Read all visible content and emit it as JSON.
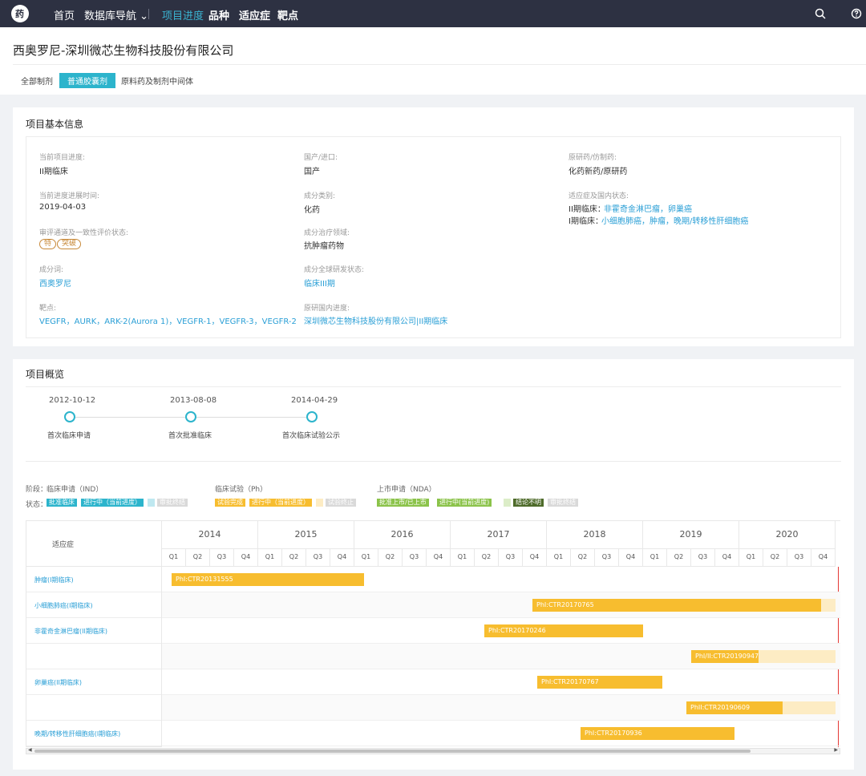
{
  "nav": {
    "logo_text": "药",
    "items": [
      {
        "label": "首页"
      },
      {
        "label": "数据库导航 ⌄"
      },
      {
        "label": "项目进度"
      },
      {
        "label": "品种"
      },
      {
        "label": "适应症"
      },
      {
        "label": "靶点"
      }
    ],
    "icons": [
      "search-icon",
      "help-icon"
    ]
  },
  "header": {
    "company": "西奥罗尼-深圳微芯生物科技股份有限公司",
    "tabs": [
      {
        "label": "全部制剂"
      },
      {
        "label": "普通胶囊剂"
      },
      {
        "label": "原料药及制剂中间体"
      }
    ]
  },
  "basic_info": {
    "title": "项目基本信息",
    "col1": [
      {
        "label": "当前项目进度:",
        "value": "II期临床"
      },
      {
        "label": "当前进度进展时间:",
        "value": "2019-04-03"
      },
      {
        "label": "审评通道及一致性评价状态:",
        "pills": [
          "特",
          "突破"
        ]
      },
      {
        "label": "成分词:",
        "value": "西奥罗尼"
      },
      {
        "label": "靶点:",
        "value": "VEGFR，AURK，ARK-2(Aurora 1)，VEGFR-1，VEGFR-3，VEGFR-2"
      }
    ],
    "col2": [
      {
        "label": "国产/进口:",
        "value": "国产"
      },
      {
        "label": "成分类别:",
        "value": "化药"
      },
      {
        "label": "成分治疗领域:",
        "value": "抗肿瘤药物"
      },
      {
        "label": "成分全球研发状态:",
        "value": "临床III期"
      },
      {
        "label": "原研国内进度:",
        "value": "深圳微芯生物科技股份有限公司|II期临床"
      }
    ],
    "col3": [
      {
        "label": "原研药/仿制药:",
        "value": "化药新药/原研药"
      },
      {
        "label": "适应症及国内状态:",
        "lines": [
          {
            "prefix": "II期临床：",
            "text": "非霍奇金淋巴瘤，卵巢癌"
          },
          {
            "prefix": "I期临床：",
            "text": "小细胞肺癌，肿瘤，晚期/转移性肝细胞癌"
          }
        ]
      }
    ]
  },
  "overview": {
    "title": "项目概览",
    "timeline": [
      {
        "date": "2012-10-12",
        "label": "首次临床申请"
      },
      {
        "date": "2013-08-08",
        "label": "首次批准临床"
      },
      {
        "date": "2014-04-29",
        "label": "首次临床试验公示"
      }
    ],
    "legend": {
      "stage_label": "阶段：",
      "status_label": "状态：",
      "ind": {
        "title": "临床申请（IND）",
        "chips": [
          {
            "text": "批准临床",
            "color": "#2cb4cc"
          },
          {
            "text": "进行中（当前进度）",
            "color": "#2cb4cc"
          },
          {
            "text": "",
            "color": "#bfe8f0"
          },
          {
            "text": "审批终结",
            "color": "#d9d9d9"
          }
        ]
      },
      "ph": {
        "title": "临床试验（Ph）",
        "chips": [
          {
            "text": "试验完成",
            "color": "#f7bd2f"
          },
          {
            "text": "进行中（当前进度）",
            "color": "#f7bd2f"
          },
          {
            "text": "",
            "color": "#fdecc4"
          },
          {
            "text": "试验终止",
            "color": "#d9d9d9"
          }
        ]
      },
      "nda": {
        "title": "上市申请（NDA）",
        "chips": [
          {
            "text": "批准上市/已上市",
            "color": "#8bc34a"
          },
          {
            "text": "进行中(当前进度)",
            "color": "#8bc34a"
          },
          {
            "text": "",
            "color": "#dcedc8"
          },
          {
            "text": "结论不明",
            "color": "#4e6b2a"
          },
          {
            "text": "审批终结",
            "color": "#d9d9d9"
          }
        ]
      }
    },
    "gantt": {
      "header_label": "适应症",
      "years": [
        "2014",
        "2015",
        "2016",
        "2017",
        "2018",
        "2019",
        "2020"
      ],
      "quarters": [
        "Q1",
        "Q2",
        "Q3",
        "Q4"
      ],
      "rows": [
        {
          "indication": "肿瘤(I期临床)",
          "bar": {
            "text": "PhI:CTR20131555",
            "start": 2014.1,
            "end": 2016.1,
            "ghost_end": null
          }
        },
        {
          "indication": "小细胞肺癌(I期临床)",
          "bar": {
            "text": "PhI:CTR20170765",
            "start": 2017.85,
            "end": 2020.85,
            "ghost_end": 2021.0
          }
        },
        {
          "indication": "非霍奇金淋巴瘤(II期临床)",
          "bar": {
            "text": "PhI:CTR20170246",
            "start": 2017.35,
            "end": 2019.0,
            "ghost_end": null
          }
        },
        {
          "indication": "",
          "bar": {
            "text": "PhI/II:CTR20190947",
            "start": 2019.5,
            "end": 2020.2,
            "ghost_end": 2021.0
          }
        },
        {
          "indication": "卵巢癌(II期临床)",
          "bar": {
            "text": "PhI:CTR20170767",
            "start": 2017.9,
            "end": 2019.2,
            "ghost_end": null
          }
        },
        {
          "indication": "",
          "bar": {
            "text": "PhII:CTR20190609",
            "start": 2019.45,
            "end": 2020.45,
            "ghost_end": 2021.0
          }
        },
        {
          "indication": "晚期/转移性肝细胞癌(I期临床)",
          "bar": {
            "text": "PhI:CTR20170936",
            "start": 2018.35,
            "end": 2019.95,
            "ghost_end": null
          }
        }
      ]
    }
  }
}
